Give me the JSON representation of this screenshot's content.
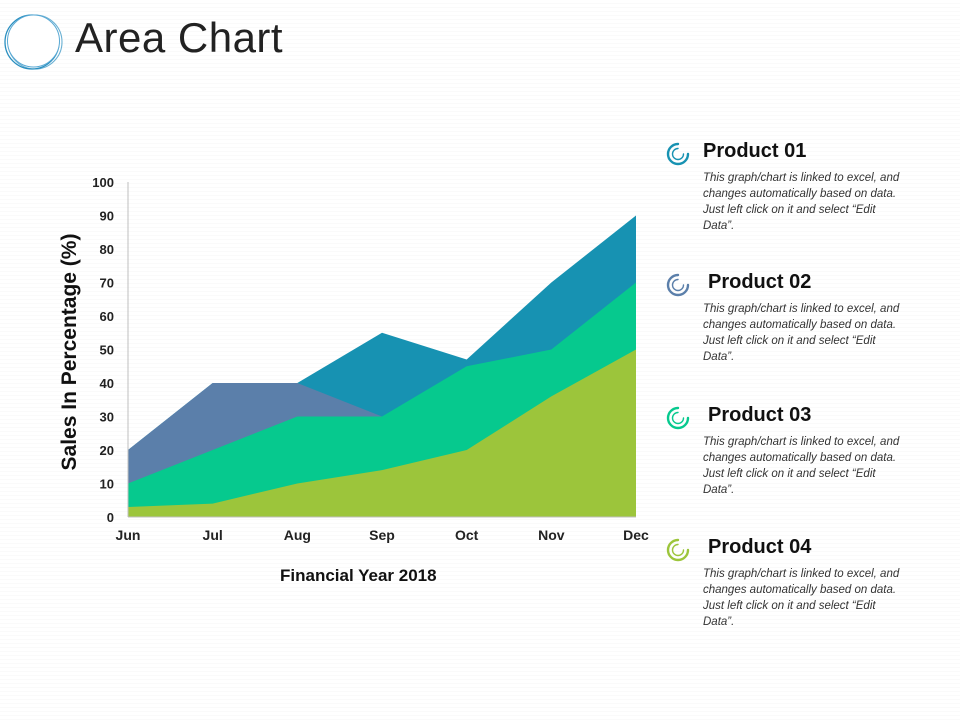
{
  "page": {
    "title": "Area Chart"
  },
  "colors": {
    "product01": "#1792b2",
    "product02": "#5b7faa",
    "product03": "#06c98e",
    "product04": "#9cc53b",
    "title_text": "#222222",
    "logo_ring": "#2a8fc0"
  },
  "icons": {
    "logo": "overlapping-circles-icon",
    "legend": "circle-arrow-icon"
  },
  "chart_data": {
    "type": "area",
    "title": "",
    "xlabel": "Financial Year 2018",
    "ylabel": "Sales In Percentage (%)",
    "categories": [
      "Jun",
      "Jul",
      "Aug",
      "Sep",
      "Oct",
      "Nov",
      "Dec"
    ],
    "ylim": [
      0,
      100
    ],
    "yticks": [
      "0",
      "10",
      "20",
      "30",
      "40",
      "50",
      "60",
      "70",
      "80",
      "90",
      "100"
    ],
    "grid": false,
    "legend_position": "right",
    "series": [
      {
        "name": "Product 01",
        "values": [
          20,
          40,
          40,
          55,
          47,
          70,
          90
        ],
        "color": "#1792b2"
      },
      {
        "name": "Product 02",
        "values": [
          20,
          40,
          40,
          30,
          0,
          0,
          0
        ],
        "color": "#5b7faa"
      },
      {
        "name": "Product 03",
        "values": [
          10,
          20,
          30,
          30,
          45,
          50,
          70
        ],
        "color": "#06c98e"
      },
      {
        "name": "Product 04",
        "values": [
          3,
          4,
          10,
          14,
          20,
          36,
          50
        ],
        "color": "#9cc53b"
      }
    ]
  },
  "legend": [
    {
      "name": "Product 01",
      "description": "This graph/chart is linked to excel, and changes automatically based on data. Just left click on it and select “Edit Data”."
    },
    {
      "name": "Product 02",
      "description": "This graph/chart is linked to excel, and changes automatically based on data. Just left click on it and select “Edit Data”."
    },
    {
      "name": "Product 03",
      "description": "This graph/chart is linked to excel, and changes automatically based on data. Just left click on it and select “Edit Data”."
    },
    {
      "name": "Product 04",
      "description": "This graph/chart is linked to excel, and changes automatically based on data. Just left click on it and select “Edit Data”."
    }
  ]
}
